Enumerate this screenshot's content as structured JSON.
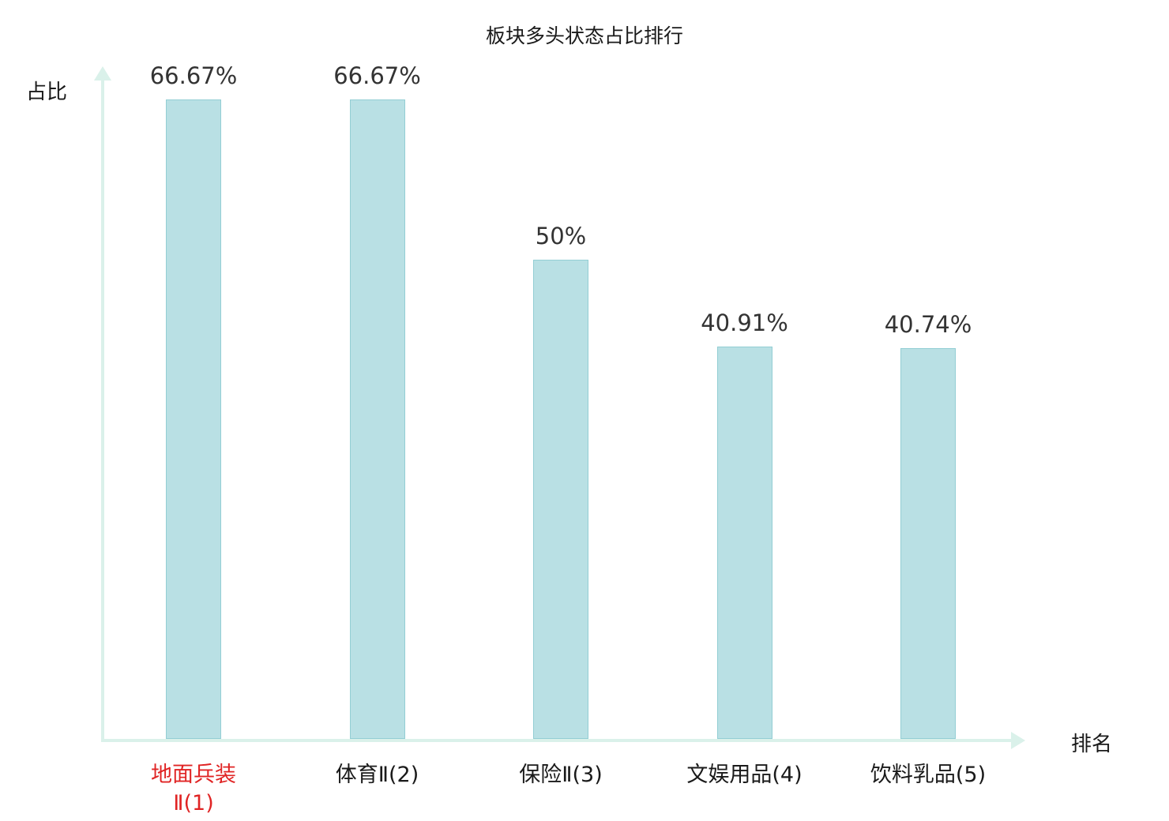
{
  "chart": {
    "title": "板块多头状态占比排行",
    "y_axis_label": "占比",
    "x_axis_label": "排名"
  },
  "chart_data": {
    "type": "bar",
    "title": "板块多头状态占比排行",
    "xlabel": "排名",
    "ylabel": "占比",
    "categories": [
      "地面兵装Ⅱ(1)",
      "体育Ⅱ(2)",
      "保险Ⅱ(3)",
      "文娱用品(4)",
      "饮料乳品(5)"
    ],
    "category_lines": [
      [
        "地面兵装",
        "Ⅱ(1)"
      ],
      [
        "体育Ⅱ(2)"
      ],
      [
        "保险Ⅱ(3)"
      ],
      [
        "文娱用品(4)"
      ],
      [
        "饮料乳品(5)"
      ]
    ],
    "values": [
      66.67,
      66.67,
      50,
      40.91,
      40.74
    ],
    "value_labels": [
      "66.67%",
      "66.67%",
      "50%",
      "40.91%",
      "40.74%"
    ],
    "highlight_index": 0,
    "ylim": [
      0,
      70
    ],
    "grid": false,
    "legend": "none",
    "colors": {
      "bar_fill": "#b9e0e4",
      "bar_border": "#93ced4",
      "axis": "#daf1ea",
      "highlight_text": "#e02424",
      "value_text": "#333333",
      "category_text": "#1a1a1a"
    }
  }
}
